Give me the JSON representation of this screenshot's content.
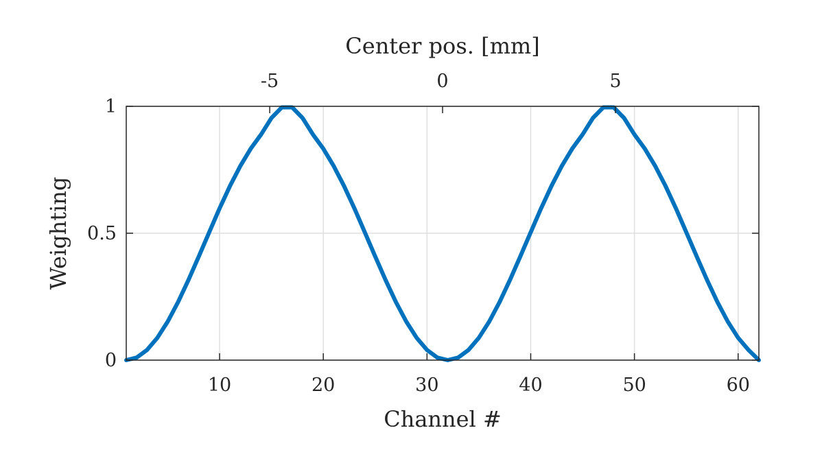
{
  "chart_data": {
    "type": "line",
    "xlabel": "Channel #",
    "x2label": "Center pos. [mm]",
    "ylabel": "Weighting",
    "xlim": [
      1,
      62
    ],
    "ylim": [
      0,
      1
    ],
    "x2lim": [
      -9.15,
      9.15
    ],
    "xticks": [
      10,
      20,
      30,
      40,
      50,
      60
    ],
    "xtick_labels": [
      "10",
      "20",
      "30",
      "40",
      "50",
      "60"
    ],
    "x2ticks": [
      -5,
      0,
      5
    ],
    "x2tick_labels": [
      "-5",
      "0",
      "5"
    ],
    "yticks": [
      0,
      0.5,
      1
    ],
    "ytick_labels": [
      "0",
      "0.5",
      "1"
    ],
    "grid": true,
    "series_color": "#0072bd",
    "x": [
      1,
      2,
      3,
      4,
      5,
      6,
      7,
      8,
      9,
      10,
      11,
      12,
      13,
      14,
      15,
      16,
      17,
      18,
      19,
      20,
      21,
      22,
      23,
      24,
      25,
      26,
      27,
      28,
      29,
      30,
      31,
      32,
      33,
      34,
      35,
      36,
      37,
      38,
      39,
      40,
      41,
      42,
      43,
      44,
      45,
      46,
      47,
      48,
      49,
      50,
      51,
      52,
      53,
      54,
      55,
      56,
      57,
      58,
      59,
      60,
      61,
      62
    ],
    "y": [
      0.0,
      0.01,
      0.04,
      0.088,
      0.152,
      0.229,
      0.316,
      0.409,
      0.504,
      0.598,
      0.686,
      0.765,
      0.833,
      0.889,
      0.954,
      0.996,
      0.996,
      0.954,
      0.889,
      0.833,
      0.765,
      0.686,
      0.598,
      0.504,
      0.409,
      0.316,
      0.229,
      0.152,
      0.088,
      0.04,
      0.01,
      0.0,
      0.01,
      0.04,
      0.088,
      0.152,
      0.229,
      0.316,
      0.409,
      0.504,
      0.598,
      0.686,
      0.765,
      0.833,
      0.889,
      0.954,
      0.996,
      0.996,
      0.954,
      0.889,
      0.833,
      0.765,
      0.686,
      0.598,
      0.504,
      0.409,
      0.316,
      0.229,
      0.152,
      0.088,
      0.04,
      0.0
    ]
  }
}
